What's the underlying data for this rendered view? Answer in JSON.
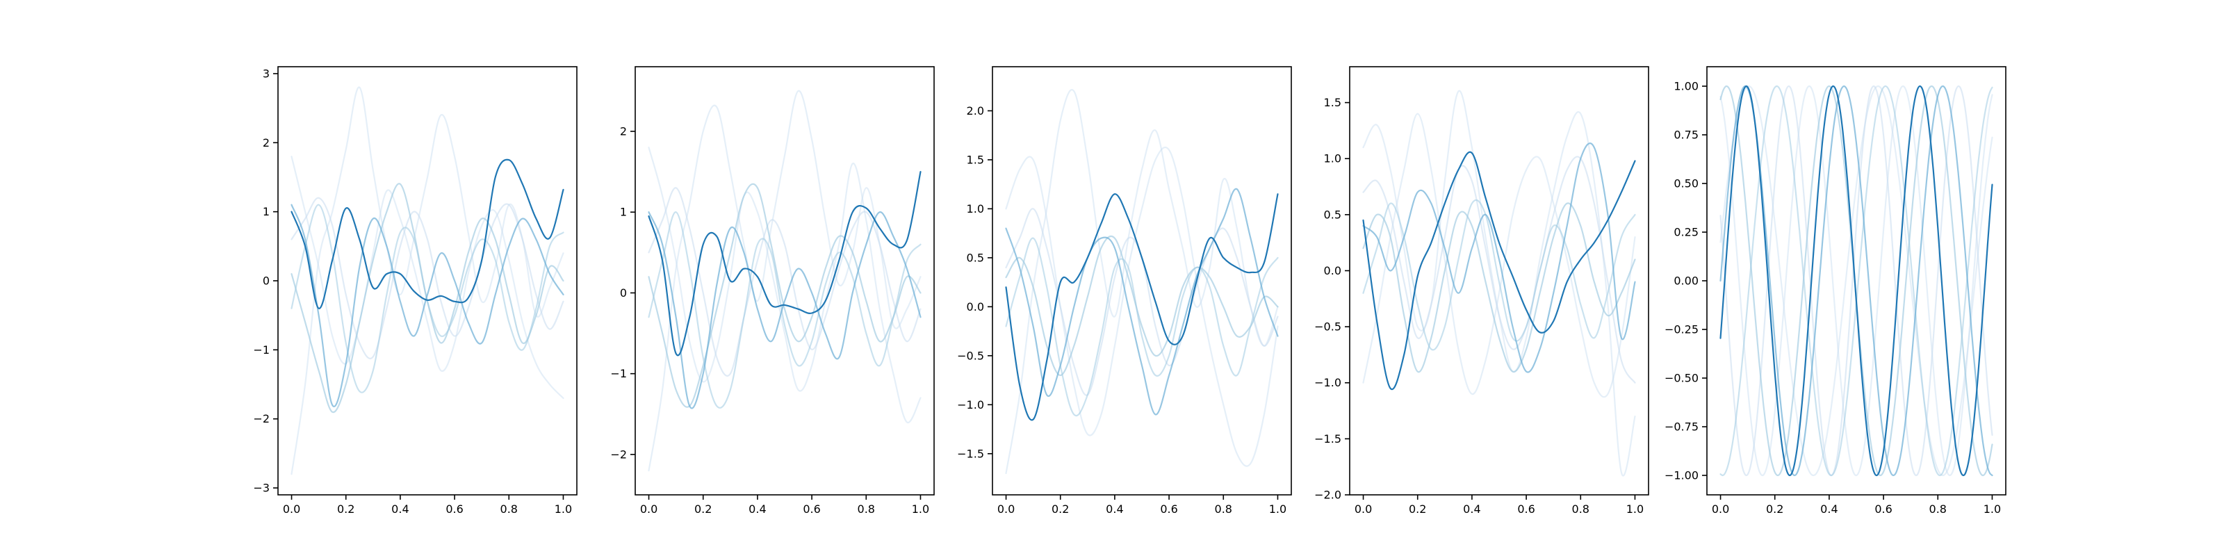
{
  "chart_data": [
    {
      "type": "line",
      "ylim": [
        -3.1,
        3.1
      ],
      "xlim": [
        -0.05,
        1.05
      ],
      "xticks": [
        0.0,
        0.2,
        0.4,
        0.6,
        0.8,
        1.0
      ],
      "xtick_labels": [
        "0.0",
        "0.2",
        "0.4",
        "0.6",
        "0.8",
        "1.0"
      ],
      "yticks": [
        -3,
        -2,
        -1,
        0,
        1,
        2,
        3
      ],
      "ytick_labels": [
        "−3",
        "−2",
        "−1",
        "0",
        "1",
        "2",
        "3"
      ],
      "grid": false,
      "x": [
        0.0,
        0.05,
        0.1,
        0.15,
        0.2,
        0.25,
        0.3,
        0.35,
        0.4,
        0.45,
        0.5,
        0.55,
        0.6,
        0.65,
        0.7,
        0.75,
        0.8,
        0.85,
        0.9,
        0.95,
        1.0
      ],
      "series": [
        {
          "color": "#c6dbef",
          "alpha": 0.45,
          "values": [
            -2.8,
            -1.5,
            0.3,
            1.0,
            1.9,
            2.8,
            1.6,
            0.5,
            -0.2,
            0.6,
            1.5,
            2.4,
            1.8,
            0.7,
            -0.3,
            0.2,
            1.1,
            0.6,
            -0.5,
            -0.1,
            0.4
          ]
        },
        {
          "color": "#c6dbef",
          "alpha": 0.45,
          "values": [
            1.8,
            1.0,
            0.2,
            -0.8,
            -1.2,
            -0.6,
            0.4,
            1.3,
            0.9,
            0.2,
            -0.6,
            -1.3,
            -0.9,
            0.1,
            0.8,
            1.0,
            0.3,
            -0.6,
            -1.2,
            -1.5,
            -1.7
          ]
        },
        {
          "color": "#c6dbef",
          "alpha": 0.55,
          "values": [
            0.6,
            0.9,
            1.2,
            0.8,
            -0.2,
            -0.9,
            -1.1,
            -0.4,
            0.5,
            1.0,
            0.6,
            -0.3,
            -0.8,
            -0.4,
            0.3,
            0.9,
            1.1,
            0.6,
            -0.2,
            -0.7,
            -0.3
          ]
        },
        {
          "color": "#9ecae1",
          "alpha": 0.55,
          "values": [
            -0.4,
            0.5,
            1.1,
            0.4,
            -0.9,
            -1.6,
            -1.3,
            -0.2,
            0.7,
            0.6,
            -0.3,
            -0.8,
            -0.5,
            0.2,
            0.6,
            0.3,
            -0.6,
            -1.0,
            -0.4,
            0.5,
            0.7
          ]
        },
        {
          "color": "#9ecae1",
          "alpha": 0.65,
          "values": [
            0.1,
            -0.6,
            -1.3,
            -1.9,
            -1.5,
            -0.6,
            0.3,
            1.0,
            1.4,
            0.7,
            -0.3,
            -0.9,
            -0.4,
            0.4,
            0.9,
            0.6,
            -0.2,
            -0.9,
            -0.5,
            0.2,
            0.0
          ]
        },
        {
          "color": "#6baed6",
          "alpha": 0.7,
          "values": [
            1.1,
            0.6,
            -0.5,
            -1.8,
            -1.2,
            0.2,
            0.9,
            0.5,
            -0.3,
            -0.8,
            -0.2,
            0.4,
            0.0,
            -0.6,
            -0.9,
            -0.2,
            0.5,
            0.9,
            0.6,
            0.1,
            -0.2
          ]
        },
        {
          "color": "#1f77b4",
          "alpha": 1.0,
          "values": [
            1.0,
            0.5,
            -0.4,
            0.3,
            1.05,
            0.6,
            -0.1,
            0.1,
            0.1,
            -0.15,
            -0.28,
            -0.22,
            -0.3,
            -0.25,
            0.3,
            1.5,
            1.75,
            1.4,
            0.9,
            0.62,
            1.32
          ]
        }
      ]
    },
    {
      "type": "line",
      "ylim": [
        -2.5,
        2.8
      ],
      "xlim": [
        -0.05,
        1.05
      ],
      "xticks": [
        0.0,
        0.2,
        0.4,
        0.6,
        0.8,
        1.0
      ],
      "xtick_labels": [
        "0.0",
        "0.2",
        "0.4",
        "0.6",
        "0.8",
        "1.0"
      ],
      "yticks": [
        -2,
        -1,
        0,
        1,
        2
      ],
      "ytick_labels": [
        "−2",
        "−1",
        "0",
        "1",
        "2"
      ],
      "grid": false,
      "x": [
        0.0,
        0.05,
        0.1,
        0.15,
        0.2,
        0.25,
        0.3,
        0.35,
        0.4,
        0.45,
        0.5,
        0.55,
        0.6,
        0.65,
        0.7,
        0.75,
        0.8,
        0.85,
        0.9,
        0.95,
        1.0
      ],
      "series": [
        {
          "color": "#c6dbef",
          "alpha": 0.45,
          "values": [
            -2.2,
            -1.2,
            0.3,
            1.1,
            2.0,
            2.3,
            1.5,
            0.6,
            -0.1,
            0.8,
            1.7,
            2.5,
            1.9,
            0.9,
            0.1,
            0.5,
            1.3,
            0.6,
            -0.4,
            -0.2,
            0.2
          ]
        },
        {
          "color": "#c6dbef",
          "alpha": 0.45,
          "values": [
            1.8,
            1.2,
            0.4,
            -0.6,
            -1.1,
            -0.7,
            0.2,
            1.2,
            1.0,
            0.3,
            -0.5,
            -1.2,
            -0.9,
            -0.1,
            0.6,
            1.6,
            0.9,
            -0.2,
            -1.0,
            -1.6,
            -1.3
          ]
        },
        {
          "color": "#c6dbef",
          "alpha": 0.55,
          "values": [
            0.5,
            0.9,
            1.3,
            0.8,
            0.0,
            -0.8,
            -1.0,
            -0.3,
            0.4,
            0.9,
            0.6,
            -0.2,
            -0.7,
            -0.3,
            0.3,
            0.8,
            1.0,
            0.6,
            -0.1,
            -0.6,
            -0.2
          ]
        },
        {
          "color": "#9ecae1",
          "alpha": 0.55,
          "values": [
            -0.3,
            0.4,
            1.0,
            0.3,
            -0.8,
            -1.4,
            -1.2,
            -0.3,
            0.6,
            0.5,
            -0.4,
            -0.9,
            -0.6,
            0.1,
            0.5,
            0.2,
            -0.5,
            -0.9,
            -0.3,
            0.4,
            0.6
          ]
        },
        {
          "color": "#9ecae1",
          "alpha": 0.65,
          "values": [
            0.2,
            -0.5,
            -1.2,
            -1.4,
            -0.9,
            -0.2,
            0.5,
            1.2,
            1.3,
            0.6,
            -0.2,
            -0.6,
            -0.3,
            0.3,
            0.7,
            0.5,
            -0.1,
            -0.6,
            -0.3,
            0.2,
            0.0
          ]
        },
        {
          "color": "#6baed6",
          "alpha": 0.7,
          "values": [
            1.0,
            0.6,
            -0.3,
            -1.4,
            -1.0,
            0.1,
            0.8,
            0.5,
            -0.2,
            -0.6,
            -0.1,
            0.3,
            0.0,
            -0.5,
            -0.8,
            0.0,
            0.6,
            1.0,
            0.7,
            0.3,
            -0.3
          ]
        },
        {
          "color": "#1f77b4",
          "alpha": 1.0,
          "values": [
            0.95,
            0.4,
            -0.75,
            -0.3,
            0.6,
            0.7,
            0.15,
            0.3,
            0.2,
            -0.15,
            -0.15,
            -0.2,
            -0.25,
            -0.1,
            0.4,
            1.0,
            1.05,
            0.8,
            0.6,
            0.65,
            1.5
          ]
        }
      ]
    },
    {
      "type": "line",
      "ylim": [
        -1.92,
        2.45
      ],
      "xlim": [
        -0.05,
        1.05
      ],
      "xticks": [
        0.0,
        0.2,
        0.4,
        0.6,
        0.8,
        1.0
      ],
      "xtick_labels": [
        "0.0",
        "0.2",
        "0.4",
        "0.6",
        "0.8",
        "1.0"
      ],
      "yticks": [
        -1.5,
        -1.0,
        -0.5,
        0.0,
        0.5,
        1.0,
        1.5,
        2.0
      ],
      "ytick_labels": [
        "−1.5",
        "−1.0",
        "−0.5",
        "0.0",
        "0.5",
        "1.0",
        "1.5",
        "2.0"
      ],
      "grid": false,
      "x": [
        0.0,
        0.05,
        0.1,
        0.15,
        0.2,
        0.25,
        0.3,
        0.35,
        0.4,
        0.45,
        0.5,
        0.55,
        0.6,
        0.65,
        0.7,
        0.75,
        0.8,
        0.85,
        0.9,
        0.95,
        1.0
      ],
      "series": [
        {
          "color": "#c6dbef",
          "alpha": 0.45,
          "values": [
            -1.7,
            -0.9,
            0.2,
            1.0,
            1.9,
            2.2,
            1.5,
            0.5,
            -0.1,
            0.7,
            1.4,
            1.8,
            1.2,
            0.6,
            0.0,
            0.4,
            1.3,
            0.8,
            0.0,
            -0.4,
            0.0
          ]
        },
        {
          "color": "#c6dbef",
          "alpha": 0.45,
          "values": [
            1.0,
            1.4,
            1.5,
            0.9,
            0.0,
            -0.8,
            -1.3,
            -1.1,
            -0.4,
            0.4,
            1.0,
            1.5,
            1.6,
            1.1,
            0.3,
            -0.4,
            -1.0,
            -1.5,
            -1.6,
            -1.1,
            -0.2
          ]
        },
        {
          "color": "#c6dbef",
          "alpha": 0.55,
          "values": [
            0.4,
            0.7,
            1.0,
            0.6,
            0.0,
            -0.6,
            -0.9,
            -0.4,
            0.3,
            0.7,
            0.5,
            -0.2,
            -0.6,
            -0.3,
            0.2,
            0.6,
            0.8,
            0.5,
            0.0,
            -0.4,
            -0.1
          ]
        },
        {
          "color": "#9ecae1",
          "alpha": 0.55,
          "values": [
            -0.2,
            0.3,
            0.7,
            0.2,
            -0.6,
            -1.1,
            -0.9,
            -0.3,
            0.4,
            0.4,
            -0.3,
            -0.7,
            -0.5,
            0.1,
            0.4,
            0.2,
            -0.4,
            -0.7,
            -0.2,
            0.3,
            0.5
          ]
        },
        {
          "color": "#9ecae1",
          "alpha": 0.65,
          "values": [
            0.3,
            0.5,
            0.2,
            -0.4,
            -0.7,
            -0.4,
            0.1,
            0.6,
            0.7,
            0.3,
            -0.2,
            -0.5,
            -0.3,
            0.2,
            0.4,
            0.3,
            0.0,
            -0.3,
            -0.2,
            0.1,
            0.0
          ]
        },
        {
          "color": "#6baed6",
          "alpha": 0.7,
          "values": [
            0.8,
            0.4,
            -0.2,
            -0.9,
            -0.6,
            0.0,
            0.5,
            0.7,
            0.6,
            0.0,
            -0.6,
            -1.1,
            -0.7,
            -0.2,
            0.3,
            0.6,
            0.9,
            1.2,
            0.7,
            0.1,
            -0.3
          ]
        },
        {
          "color": "#1f77b4",
          "alpha": 1.0,
          "values": [
            0.2,
            -0.8,
            -1.15,
            -0.55,
            0.25,
            0.25,
            0.5,
            0.85,
            1.15,
            0.9,
            0.5,
            0.05,
            -0.35,
            -0.3,
            0.25,
            0.7,
            0.5,
            0.4,
            0.35,
            0.45,
            1.15
          ]
        }
      ]
    },
    {
      "type": "line",
      "ylim": [
        -2.0,
        1.82
      ],
      "xlim": [
        -0.05,
        1.05
      ],
      "xticks": [
        0.0,
        0.2,
        0.4,
        0.6,
        0.8,
        1.0
      ],
      "xtick_labels": [
        "0.0",
        "0.2",
        "0.4",
        "0.6",
        "0.8",
        "1.0"
      ],
      "yticks": [
        -2.0,
        -1.5,
        -1.0,
        -0.5,
        0.0,
        0.5,
        1.0,
        1.5
      ],
      "ytick_labels": [
        "−2.0",
        "−1.5",
        "−1.0",
        "−0.5",
        "0.0",
        "0.5",
        "1.0",
        "1.5"
      ],
      "grid": false,
      "x": [
        0.0,
        0.05,
        0.1,
        0.15,
        0.2,
        0.25,
        0.3,
        0.35,
        0.4,
        0.45,
        0.5,
        0.55,
        0.6,
        0.65,
        0.7,
        0.75,
        0.8,
        0.85,
        0.9,
        0.95,
        1.0
      ],
      "series": [
        {
          "color": "#c6dbef",
          "alpha": 0.45,
          "values": [
            1.1,
            1.3,
            0.9,
            0.2,
            -0.5,
            -0.3,
            0.8,
            1.6,
            1.1,
            0.3,
            -0.4,
            -0.9,
            -0.6,
            0.1,
            0.7,
            1.2,
            1.4,
            0.8,
            -0.3,
            -1.8,
            -1.3
          ]
        },
        {
          "color": "#c6dbef",
          "alpha": 0.45,
          "values": [
            -1.0,
            -0.4,
            0.3,
            0.9,
            1.4,
            0.9,
            0.1,
            -0.7,
            -1.1,
            -0.8,
            -0.2,
            0.5,
            0.9,
            1.0,
            0.6,
            0.1,
            -0.5,
            -1.0,
            -1.1,
            -0.6,
            0.3
          ]
        },
        {
          "color": "#c6dbef",
          "alpha": 0.55,
          "values": [
            0.7,
            0.8,
            0.5,
            -0.1,
            -0.6,
            -0.3,
            0.3,
            0.9,
            0.8,
            0.2,
            -0.4,
            -0.7,
            -0.5,
            0.0,
            0.5,
            0.9,
            1.0,
            0.6,
            -0.1,
            -0.8,
            -1.0
          ]
        },
        {
          "color": "#9ecae1",
          "alpha": 0.55,
          "values": [
            -0.2,
            0.2,
            0.6,
            0.3,
            -0.3,
            -0.7,
            -0.5,
            0.1,
            0.6,
            0.5,
            -0.1,
            -0.6,
            -0.5,
            0.0,
            0.4,
            0.2,
            -0.3,
            -0.6,
            -0.2,
            0.3,
            0.5
          ]
        },
        {
          "color": "#9ecae1",
          "alpha": 0.65,
          "values": [
            0.2,
            0.5,
            0.3,
            -0.4,
            -0.9,
            -0.6,
            0.0,
            0.5,
            0.4,
            -0.1,
            -0.6,
            -0.9,
            -0.7,
            -0.2,
            0.3,
            0.6,
            0.4,
            -0.1,
            -0.4,
            -0.2,
            0.1
          ]
        },
        {
          "color": "#6baed6",
          "alpha": 0.7,
          "values": [
            0.4,
            0.3,
            0.0,
            0.3,
            0.7,
            0.6,
            0.2,
            -0.2,
            0.2,
            0.5,
            0.1,
            -0.5,
            -0.9,
            -0.7,
            -0.2,
            0.4,
            1.0,
            1.1,
            0.5,
            -0.6,
            -0.1
          ]
        },
        {
          "color": "#1f77b4",
          "alpha": 1.0,
          "values": [
            0.45,
            -0.45,
            -1.05,
            -0.75,
            -0.05,
            0.25,
            0.6,
            0.9,
            1.05,
            0.65,
            0.25,
            -0.05,
            -0.35,
            -0.55,
            -0.45,
            -0.1,
            0.1,
            0.25,
            0.45,
            0.7,
            0.98
          ]
        }
      ]
    },
    {
      "type": "line",
      "ylim": [
        -1.1,
        1.1
      ],
      "xlim": [
        -0.05,
        1.05
      ],
      "xticks": [
        0.0,
        0.2,
        0.4,
        0.6,
        0.8,
        1.0
      ],
      "xtick_labels": [
        "0.0",
        "0.2",
        "0.4",
        "0.6",
        "0.8",
        "1.0"
      ],
      "yticks": [
        -1.0,
        -0.75,
        -0.5,
        -0.25,
        0.0,
        0.25,
        0.5,
        0.75,
        1.0
      ],
      "ytick_labels": [
        "−1.00",
        "−0.75",
        "−0.50",
        "−0.25",
        "0.00",
        "0.25",
        "0.50",
        "0.75",
        "1.00"
      ],
      "grid": false,
      "sine": true,
      "series": [
        {
          "color": "#c6dbef",
          "alpha": 0.45,
          "freq": 2.9,
          "phase": 1.9
        },
        {
          "color": "#c6dbef",
          "alpha": 0.45,
          "freq": 2.1,
          "phase": 0.2
        },
        {
          "color": "#c6dbef",
          "alpha": 0.55,
          "freq": 3.2,
          "phase": 2.8
        },
        {
          "color": "#9ecae1",
          "alpha": 0.55,
          "freq": 2.5,
          "phase": 4.6
        },
        {
          "color": "#9ecae1",
          "alpha": 0.65,
          "freq": 2.65,
          "phase": 1.2
        },
        {
          "color": "#6baed6",
          "alpha": 0.7,
          "freq": 2.75,
          "phase": 0.0
        },
        {
          "color": "#1f77b4",
          "alpha": 1.0,
          "freq": 3.13,
          "phase": -0.3
        }
      ]
    }
  ]
}
